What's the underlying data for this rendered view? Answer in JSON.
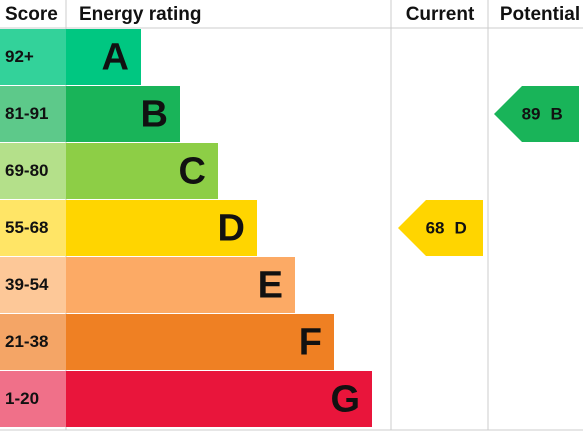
{
  "header": {
    "score": "Score",
    "energy_rating": "Energy rating",
    "current": "Current",
    "potential": "Potential"
  },
  "bands": [
    {
      "score": "92+",
      "rating": "A"
    },
    {
      "score": "81-91",
      "rating": "B"
    },
    {
      "score": "69-80",
      "rating": "C"
    },
    {
      "score": "55-68",
      "rating": "D"
    },
    {
      "score": "39-54",
      "rating": "E"
    },
    {
      "score": "21-38",
      "rating": "F"
    },
    {
      "score": "1-20",
      "rating": "G"
    }
  ],
  "current": {
    "value": 68,
    "rating": "D"
  },
  "potential": {
    "value": 89,
    "rating": "B"
  }
}
